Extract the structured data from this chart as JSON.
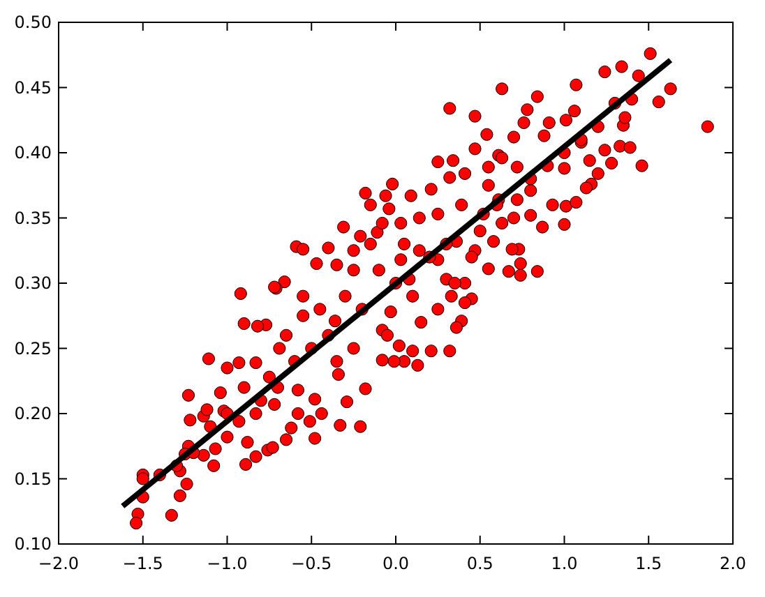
{
  "chart_data": {
    "type": "scatter",
    "xlim": [
      -2,
      2
    ],
    "ylim": [
      0.1,
      0.5
    ],
    "xticks": [
      {
        "value": -2,
        "label": "−2.0"
      },
      {
        "value": -1.5,
        "label": "−1.5"
      },
      {
        "value": -1,
        "label": "−1.0"
      },
      {
        "value": -0.5,
        "label": "−0.5"
      },
      {
        "value": 0,
        "label": "0.0"
      },
      {
        "value": 0.5,
        "label": "0.5"
      },
      {
        "value": 1,
        "label": "1.0"
      },
      {
        "value": 1.5,
        "label": "1.5"
      },
      {
        "value": 2,
        "label": "2.0"
      }
    ],
    "yticks": [
      {
        "value": 0.1,
        "label": "0.10"
      },
      {
        "value": 0.15,
        "label": "0.15"
      },
      {
        "value": 0.2,
        "label": "0.20"
      },
      {
        "value": 0.25,
        "label": "0.25"
      },
      {
        "value": 0.3,
        "label": "0.30"
      },
      {
        "value": 0.35,
        "label": "0.35"
      },
      {
        "value": 0.4,
        "label": "0.40"
      },
      {
        "value": 0.45,
        "label": "0.45"
      },
      {
        "value": 0.5,
        "label": "0.50"
      }
    ],
    "series": [
      {
        "color": "#ff0000",
        "marker": "circle",
        "x": [
          1.51,
          1.34,
          1.24,
          1.44,
          1.63,
          1.56,
          1.4,
          1.85,
          1.07,
          0.63,
          0.84,
          0.32,
          0.47,
          0.78,
          1.06,
          0.76,
          0.91,
          1.01,
          1.35,
          1.3,
          1.36,
          0.54,
          0.7,
          0.88,
          1.1,
          1.33,
          1.39,
          1.24,
          0.47,
          0.25,
          0.34,
          0.61,
          1.15,
          1.28,
          1.46,
          1.2,
          1.16,
          1.13,
          1.0,
          0.93,
          1.01,
          1.07,
          0.87,
          1.0,
          0.84,
          0.74,
          0.67,
          0.55,
          0.73,
          0.69,
          0.8,
          0.74,
          0.45,
          0.41,
          0.39,
          0.36,
          0.32,
          0.21,
          0.13,
          0.05,
          -0.01,
          0.1,
          0.02,
          0.33,
          -0.92,
          -0.66,
          -0.71,
          -0.9,
          -0.77,
          -0.82,
          -1.11,
          -1.0,
          -0.93,
          -1.23,
          -1.22,
          -1.14,
          -1.12,
          -1.04,
          -1.02,
          -1.07,
          -1.08,
          -1.14,
          -1.23,
          -1.25,
          -1.28,
          -1.24,
          -1.28,
          -1.33,
          -1.5,
          -1.5,
          -1.5,
          -1.53,
          -1.54,
          -1.4,
          -0.89,
          -0.83,
          -0.76,
          -0.65,
          -0.48,
          -0.51,
          -0.33,
          -0.21,
          -0.29,
          -0.34,
          -0.18,
          -0.08,
          -0.62,
          -0.73,
          -0.88,
          -1.0,
          -0.93,
          -0.83,
          -0.72,
          -0.58,
          -0.44,
          -0.48,
          -0.58,
          -0.75,
          -0.83,
          -0.69,
          -0.55,
          -0.36,
          -0.25,
          -0.08,
          -0.03,
          -0.02,
          -0.18,
          -0.06,
          -0.15,
          -0.04,
          -0.31,
          -0.11,
          -0.59,
          -0.55,
          -0.4,
          -0.47,
          -0.35,
          -0.21,
          -0.72,
          -0.25,
          -0.08,
          0.09,
          0.21,
          0.32,
          0.41,
          0.55,
          0.63,
          0.72,
          0.55,
          0.39,
          0.25,
          0.14,
          0.03,
          0.63,
          0.52,
          0.61,
          0.72,
          0.8,
          0.36,
          0.47,
          0.58,
          0.25,
          0.14,
          0.03,
          0.08,
          0.3,
          0.41,
          0.0,
          -0.2,
          -0.1,
          0.1,
          0.2,
          -0.3,
          -0.4,
          -0.5,
          -0.6,
          -0.7,
          0.3,
          0.15,
          -0.05,
          -0.25,
          -0.15,
          0.05,
          0.25,
          -0.35,
          -0.45,
          -0.55,
          -0.65,
          -0.8,
          -0.9,
          0.35,
          0.45,
          0.5,
          0.6,
          0.7,
          0.8,
          0.9,
          1.0,
          1.1,
          1.2,
          -1.0,
          -1.1,
          -1.2,
          -1.3
        ],
        "values": [
          0.476,
          0.466,
          0.462,
          0.459,
          0.449,
          0.439,
          0.441,
          0.42,
          0.452,
          0.449,
          0.443,
          0.434,
          0.428,
          0.433,
          0.432,
          0.423,
          0.423,
          0.425,
          0.421,
          0.438,
          0.427,
          0.414,
          0.412,
          0.413,
          0.408,
          0.405,
          0.404,
          0.402,
          0.403,
          0.393,
          0.394,
          0.398,
          0.394,
          0.392,
          0.39,
          0.384,
          0.376,
          0.373,
          0.388,
          0.36,
          0.359,
          0.362,
          0.343,
          0.345,
          0.309,
          0.315,
          0.309,
          0.311,
          0.326,
          0.326,
          0.352,
          0.306,
          0.288,
          0.285,
          0.271,
          0.266,
          0.248,
          0.248,
          0.237,
          0.24,
          0.24,
          0.248,
          0.252,
          0.29,
          0.292,
          0.301,
          0.296,
          0.269,
          0.268,
          0.267,
          0.242,
          0.235,
          0.239,
          0.214,
          0.195,
          0.198,
          0.203,
          0.216,
          0.202,
          0.173,
          0.16,
          0.168,
          0.175,
          0.169,
          0.156,
          0.146,
          0.137,
          0.122,
          0.153,
          0.15,
          0.136,
          0.123,
          0.116,
          0.153,
          0.161,
          0.167,
          0.172,
          0.18,
          0.181,
          0.194,
          0.191,
          0.19,
          0.209,
          0.23,
          0.219,
          0.241,
          0.189,
          0.174,
          0.178,
          0.182,
          0.194,
          0.2,
          0.207,
          0.2,
          0.2,
          0.211,
          0.218,
          0.228,
          0.239,
          0.25,
          0.275,
          0.271,
          0.25,
          0.264,
          0.278,
          0.376,
          0.369,
          0.367,
          0.36,
          0.357,
          0.343,
          0.339,
          0.328,
          0.326,
          0.327,
          0.315,
          0.314,
          0.336,
          0.297,
          0.325,
          0.346,
          0.367,
          0.372,
          0.381,
          0.384,
          0.389,
          0.396,
          0.389,
          0.375,
          0.36,
          0.353,
          0.35,
          0.346,
          0.346,
          0.353,
          0.364,
          0.364,
          0.371,
          0.332,
          0.325,
          0.332,
          0.318,
          0.325,
          0.318,
          0.303,
          0.303,
          0.3,
          0.3,
          0.28,
          0.31,
          0.29,
          0.32,
          0.29,
          0.26,
          0.25,
          0.24,
          0.22,
          0.33,
          0.27,
          0.26,
          0.31,
          0.33,
          0.33,
          0.28,
          0.24,
          0.28,
          0.29,
          0.26,
          0.21,
          0.22,
          0.3,
          0.32,
          0.34,
          0.36,
          0.35,
          0.38,
          0.39,
          0.4,
          0.41,
          0.42,
          0.2,
          0.19,
          0.17,
          0.16
        ]
      },
      {
        "type": "line",
        "color": "#000000",
        "x": [
          -1.62,
          1.63
        ],
        "values": [
          0.129,
          0.471
        ]
      }
    ]
  }
}
